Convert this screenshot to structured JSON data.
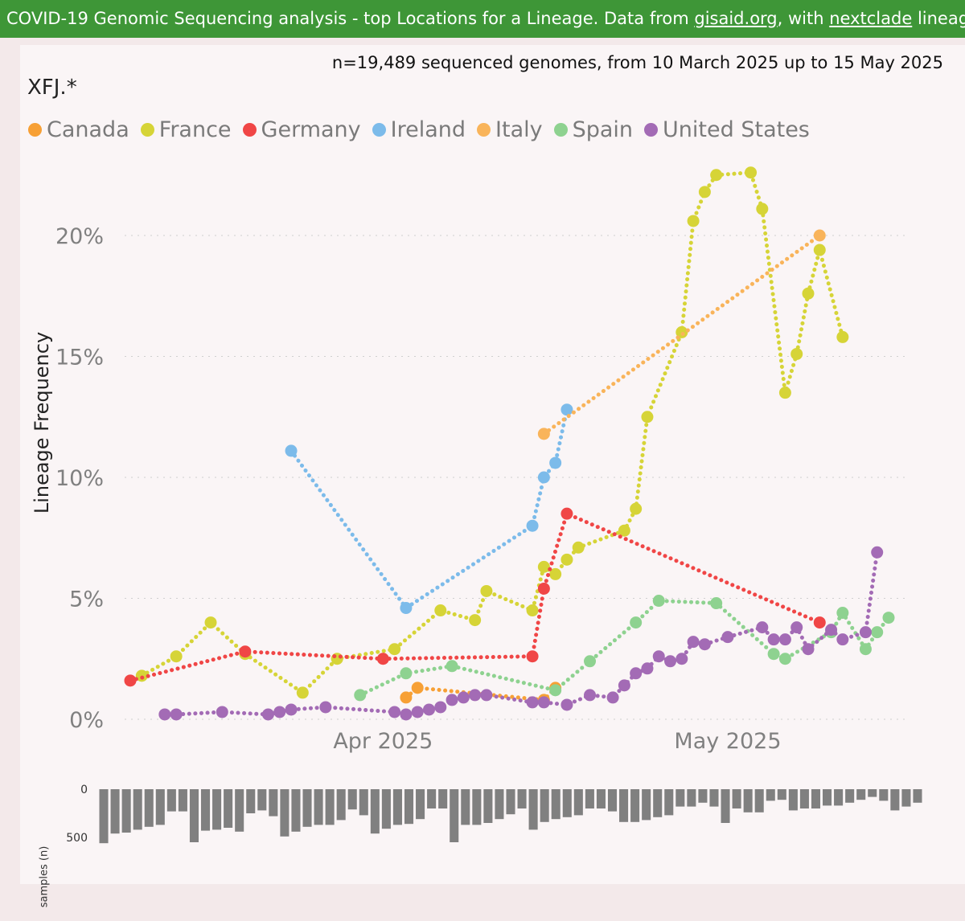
{
  "banner": {
    "prefix": "COVID-19 Genomic Sequencing analysis - top Locations for a Lineage. Data from ",
    "link1": "gisaid.org",
    "middle": ", with ",
    "link2": "nextclade",
    "suffix": " lineages Source file"
  },
  "chart_data": {
    "type": "line",
    "title": "XFJ.*",
    "subtitle": "n=19,489 sequenced genomes, from 10 March 2025 up to 15 May 2025",
    "ylabel": "Lineage Frequency",
    "ylim": [
      0,
      22.5
    ],
    "yticks": [
      {
        "v": 0,
        "label": "0%"
      },
      {
        "v": 5,
        "label": "5%"
      },
      {
        "v": 10,
        "label": "10%"
      },
      {
        "v": 15,
        "label": "15%"
      },
      {
        "v": 20,
        "label": "20%"
      }
    ],
    "x_unit": "days since 10 March 2025",
    "xlim": [
      0,
      66
    ],
    "xticks": [
      {
        "v": 22,
        "label": "Apr 2025"
      },
      {
        "v": 52,
        "label": "May 2025"
      }
    ],
    "series": [
      {
        "name": "Canada",
        "color": "#f7a035",
        "points": [
          [
            24,
            0.9
          ],
          [
            25,
            1.3
          ],
          [
            36,
            0.8
          ],
          [
            37,
            1.3
          ]
        ]
      },
      {
        "name": "France",
        "color": "#d6d437",
        "points": [
          [
            1,
            1.8
          ],
          [
            4,
            2.6
          ],
          [
            7,
            4.0
          ],
          [
            10,
            2.7
          ],
          [
            15,
            1.1
          ],
          [
            18,
            2.5
          ],
          [
            23,
            2.9
          ],
          [
            27,
            4.5
          ],
          [
            30,
            4.1
          ],
          [
            31,
            5.3
          ],
          [
            35,
            4.5
          ],
          [
            36,
            6.3
          ],
          [
            37,
            6.0
          ],
          [
            38,
            6.6
          ],
          [
            39,
            7.1
          ],
          [
            43,
            7.8
          ],
          [
            44,
            8.7
          ],
          [
            45,
            12.5
          ],
          [
            48,
            16.0
          ],
          [
            49,
            20.6
          ],
          [
            50,
            21.8
          ],
          [
            51,
            22.5
          ],
          [
            54,
            22.6
          ],
          [
            55,
            21.1
          ],
          [
            57,
            13.5
          ],
          [
            58,
            15.1
          ],
          [
            59,
            17.6
          ],
          [
            60,
            19.4
          ],
          [
            62,
            15.8
          ]
        ]
      },
      {
        "name": "Germany",
        "color": "#f04646",
        "points": [
          [
            0,
            1.6
          ],
          [
            10,
            2.8
          ],
          [
            22,
            2.5
          ],
          [
            35,
            2.6
          ],
          [
            36,
            5.4
          ],
          [
            38,
            8.5
          ],
          [
            60,
            4.0
          ]
        ]
      },
      {
        "name": "Ireland",
        "color": "#7cbbea",
        "points": [
          [
            14,
            11.1
          ],
          [
            24,
            4.6
          ],
          [
            35,
            8.0
          ],
          [
            36,
            10.0
          ],
          [
            37,
            10.6
          ],
          [
            38,
            12.8
          ]
        ]
      },
      {
        "name": "Italy",
        "color": "#f9b45a",
        "points": [
          [
            36,
            11.8
          ],
          [
            60,
            20.0
          ]
        ]
      },
      {
        "name": "Spain",
        "color": "#8ed290",
        "points": [
          [
            20,
            1.0
          ],
          [
            24,
            1.9
          ],
          [
            28,
            2.2
          ],
          [
            37,
            1.2
          ],
          [
            40,
            2.4
          ],
          [
            44,
            4.0
          ],
          [
            46,
            4.9
          ],
          [
            51,
            4.8
          ],
          [
            56,
            2.7
          ],
          [
            57,
            2.5
          ],
          [
            61,
            3.6
          ],
          [
            62,
            4.4
          ],
          [
            64,
            2.9
          ],
          [
            65,
            3.6
          ],
          [
            66,
            4.2
          ]
        ]
      },
      {
        "name": "United States",
        "color": "#a36bb5",
        "points": [
          [
            3,
            0.2
          ],
          [
            4,
            0.2
          ],
          [
            8,
            0.3
          ],
          [
            12,
            0.2
          ],
          [
            13,
            0.3
          ],
          [
            14,
            0.4
          ],
          [
            17,
            0.5
          ],
          [
            23,
            0.3
          ],
          [
            24,
            0.2
          ],
          [
            25,
            0.3
          ],
          [
            26,
            0.4
          ],
          [
            27,
            0.5
          ],
          [
            28,
            0.8
          ],
          [
            29,
            0.9
          ],
          [
            30,
            1.0
          ],
          [
            31,
            1.0
          ],
          [
            35,
            0.7
          ],
          [
            36,
            0.7
          ],
          [
            38,
            0.6
          ],
          [
            40,
            1.0
          ],
          [
            42,
            0.9
          ],
          [
            43,
            1.4
          ],
          [
            44,
            1.9
          ],
          [
            45,
            2.1
          ],
          [
            46,
            2.6
          ],
          [
            47,
            2.4
          ],
          [
            48,
            2.5
          ],
          [
            49,
            3.2
          ],
          [
            50,
            3.1
          ],
          [
            52,
            3.4
          ],
          [
            55,
            3.8
          ],
          [
            56,
            3.3
          ],
          [
            57,
            3.3
          ],
          [
            58,
            3.8
          ],
          [
            59,
            2.9
          ],
          [
            61,
            3.7
          ],
          [
            62,
            3.3
          ],
          [
            64,
            3.6
          ],
          [
            65,
            6.9
          ]
        ]
      }
    ],
    "samples": {
      "label": "samples (n)",
      "ylim": [
        0,
        600
      ],
      "yticks": [
        {
          "v": 0,
          "label": "0"
        },
        {
          "v": 500,
          "label": "500"
        }
      ],
      "values": [
        560,
        460,
        450,
        420,
        390,
        370,
        230,
        230,
        550,
        430,
        420,
        400,
        440,
        250,
        220,
        280,
        490,
        440,
        390,
        370,
        370,
        320,
        210,
        270,
        460,
        410,
        370,
        360,
        310,
        200,
        200,
        550,
        370,
        370,
        350,
        310,
        260,
        200,
        420,
        340,
        310,
        290,
        270,
        200,
        200,
        230,
        340,
        340,
        320,
        290,
        270,
        180,
        180,
        140,
        180,
        350,
        200,
        240,
        240,
        120,
        110,
        220,
        200,
        200,
        170,
        170,
        140,
        110,
        80,
        120,
        220,
        180,
        140
      ]
    }
  }
}
